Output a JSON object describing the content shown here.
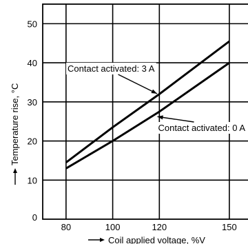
{
  "chart_data": {
    "type": "line",
    "xlabel": "Coil applied voltage, %V",
    "ylabel": "Temperature rise, °C",
    "xlim": [
      70,
      158
    ],
    "ylim": [
      0,
      55
    ],
    "x_ticks": [
      80,
      100,
      120,
      150
    ],
    "y_ticks": [
      10,
      20,
      30,
      40,
      50
    ],
    "y_zero_label": "0",
    "grid": true,
    "series": [
      {
        "name": "Contact activated: 3 A",
        "x": [
          80,
          100,
          120,
          150
        ],
        "y": [
          14.5,
          23.5,
          32,
          45.5
        ]
      },
      {
        "name": "Contact activated: 0 A",
        "x": [
          80,
          100,
          120,
          150
        ],
        "y": [
          13,
          20,
          27.5,
          40
        ]
      }
    ],
    "annotations": [
      {
        "text": "Contact activated: 3 A",
        "series": 0
      },
      {
        "text": "Contact activated: 0 A",
        "series": 1
      }
    ]
  }
}
